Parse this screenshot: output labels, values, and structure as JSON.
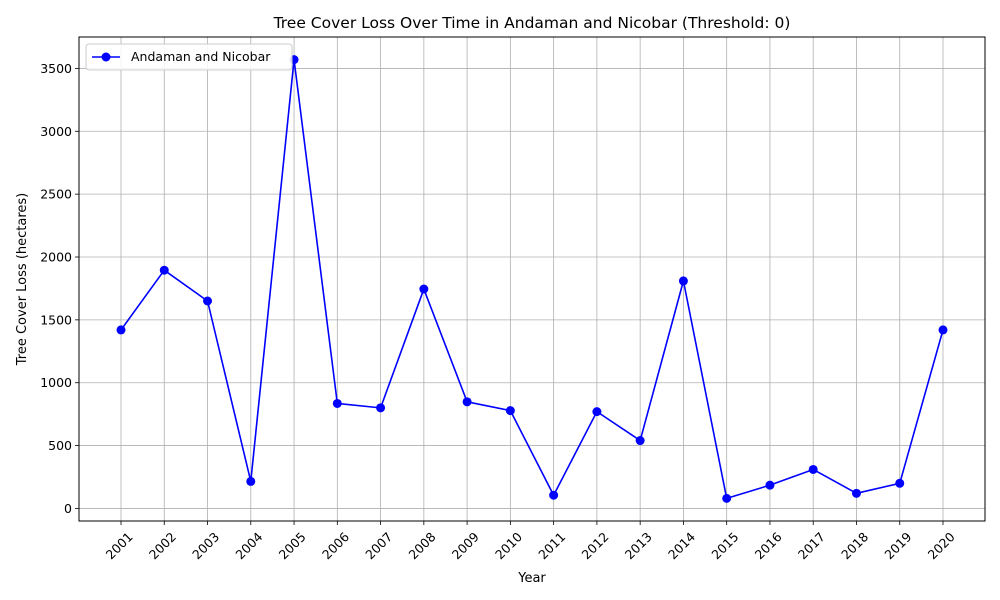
{
  "chart_data": {
    "type": "line",
    "title": "Tree Cover Loss Over Time in Andaman and Nicobar (Threshold: 0)",
    "xlabel": "Year",
    "ylabel": "Tree Cover Loss (hectares)",
    "categories": [
      "2001",
      "2002",
      "2003",
      "2004",
      "2005",
      "2006",
      "2007",
      "2008",
      "2009",
      "2010",
      "2011",
      "2012",
      "2013",
      "2014",
      "2015",
      "2016",
      "2017",
      "2018",
      "2019",
      "2020"
    ],
    "series": [
      {
        "name": "Andaman and Nicobar",
        "color": "#0000ff",
        "marker": "circle",
        "values": [
          1420,
          1895,
          1650,
          215,
          3570,
          835,
          800,
          1745,
          848,
          778,
          105,
          770,
          540,
          1810,
          80,
          185,
          310,
          120,
          200,
          1420
        ]
      }
    ],
    "ylim": [
      -100,
      3750
    ],
    "yticks": [
      0,
      500,
      1000,
      1500,
      2000,
      2500,
      3000,
      3500
    ],
    "grid": true,
    "legend_position": "top-left",
    "x_tick_rotation": 45
  }
}
